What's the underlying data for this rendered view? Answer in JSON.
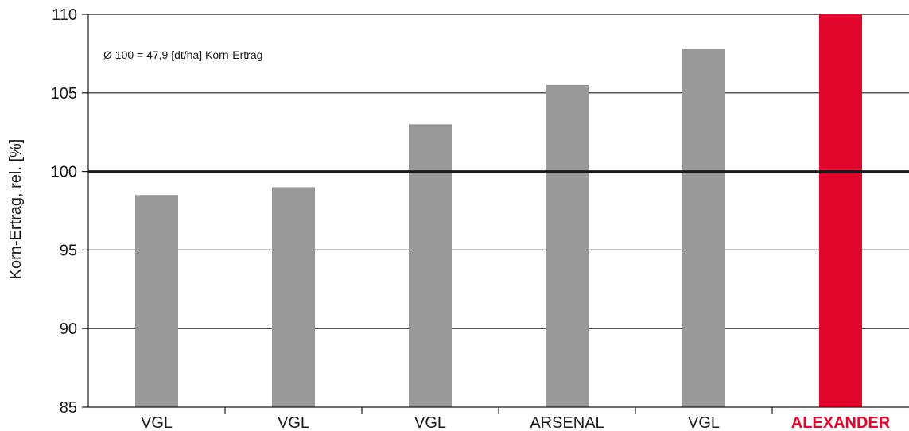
{
  "chart_data": {
    "type": "bar",
    "title": "",
    "annotation": "Ø 100 = 47,9 [dt/ha] Korn-Ertrag",
    "xlabel": "",
    "ylabel": "Korn-Ertrag, rel. [%]",
    "ylim": [
      85,
      110
    ],
    "yticks": [
      85,
      90,
      95,
      100,
      105,
      110
    ],
    "reference_line": 100,
    "grid": "horizontal",
    "categories": [
      "VGL",
      "VGL",
      "VGL",
      "ARSENAL",
      "VGL",
      "ALEXANDER"
    ],
    "values": [
      98.5,
      99.0,
      103.0,
      105.5,
      107.8,
      110.0
    ],
    "highlight_index": 5,
    "colors": {
      "bar": "#999999",
      "highlight": "#e2062c",
      "grid": "#1a1a1a",
      "text": "#1a1a1a"
    }
  }
}
